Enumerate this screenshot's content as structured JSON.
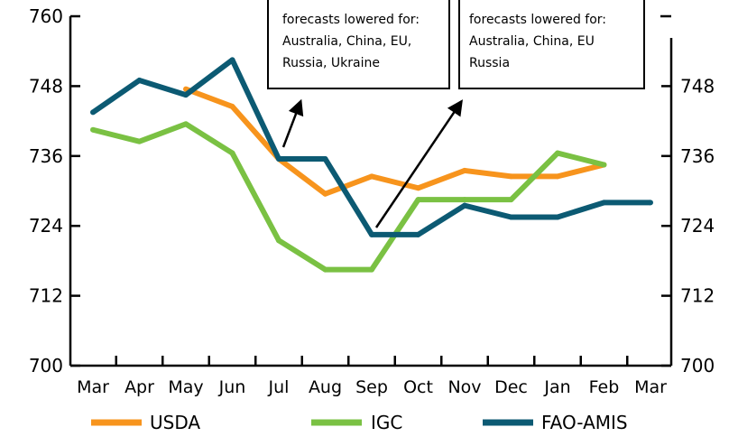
{
  "chart_data": {
    "type": "line",
    "title": "",
    "xlabel": "",
    "ylabel": "",
    "ylim": [
      700,
      760
    ],
    "y_ticks": [
      "700",
      "712",
      "724",
      "736",
      "748",
      "760"
    ],
    "right_y_ticks": [
      "700",
      "712",
      "724",
      "736",
      "748"
    ],
    "categories": [
      "Mar",
      "Apr",
      "May",
      "Jun",
      "Jul",
      "Aug",
      "Sep",
      "Oct",
      "Nov",
      "Dec",
      "Jan",
      "Feb",
      "Mar"
    ],
    "grid": false,
    "legend_position": "bottom",
    "series": [
      {
        "name": "USDA",
        "color": "#f7941d",
        "values": [
          null,
          null,
          747.5,
          744.5,
          735.5,
          729.5,
          732.5,
          730.5,
          733.5,
          732.5,
          732.5,
          734.5,
          null
        ]
      },
      {
        "name": "IGC",
        "color": "#7ac143",
        "values": [
          740.5,
          738.5,
          741.5,
          736.5,
          721.5,
          716.5,
          716.5,
          728.5,
          728.5,
          728.5,
          736.5,
          734.5,
          null
        ]
      },
      {
        "name": "FAO-AMIS",
        "color": "#0c5a73",
        "values": [
          743.5,
          749.0,
          746.5,
          752.5,
          735.5,
          735.5,
          722.5,
          722.5,
          727.5,
          725.5,
          725.5,
          728.0,
          728.0
        ]
      }
    ],
    "annotations": [
      {
        "lines": [
          "forecasts lowered for:",
          "Australia, China, EU,",
          "Russia, Ukraine"
        ],
        "arrow_from": "Jul"
      },
      {
        "lines": [
          "forecasts lowered for:",
          "Australia, China, EU",
          "Russia"
        ],
        "arrow_from": "Sep"
      }
    ]
  }
}
